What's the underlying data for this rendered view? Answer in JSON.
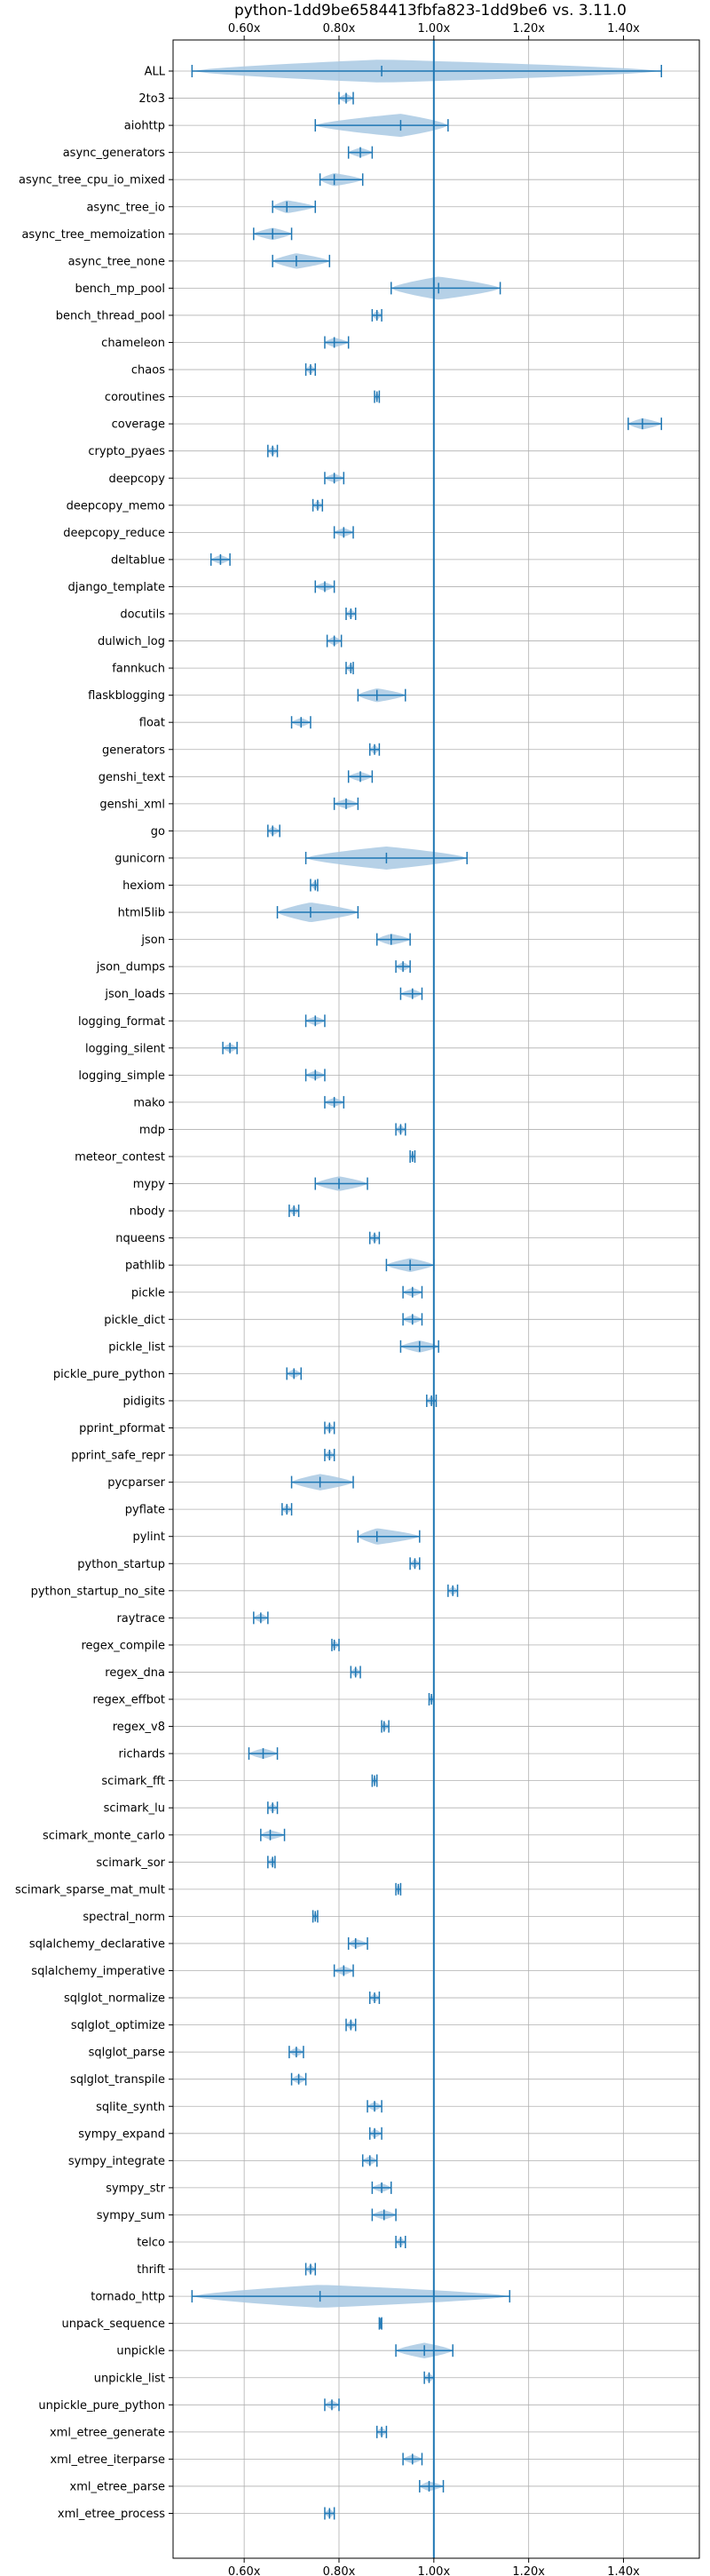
{
  "chart_data": {
    "type": "violin",
    "title": "python-1dd9be6584413fbfa823-1dd9be6 vs. 3.11.0",
    "xlabel": "",
    "ylabel": "",
    "x_ticks": [
      "0.60x",
      "0.80x",
      "1.00x",
      "1.20x",
      "1.40x"
    ],
    "x_tick_values": [
      0.6,
      0.8,
      1.0,
      1.2,
      1.4
    ],
    "xlim": [
      0.45,
      1.56
    ],
    "reference_line": 1.0,
    "grid": true,
    "colors": {
      "series": "#1f77b4",
      "fill": "#a9c9e3",
      "grid": "#b0b0b0"
    },
    "benchmarks": [
      {
        "name": "ALL",
        "min": 0.49,
        "mean": 0.89,
        "max": 1.48
      },
      {
        "name": "2to3",
        "min": 0.8,
        "mean": 0.815,
        "max": 0.83
      },
      {
        "name": "aiohttp",
        "min": 0.75,
        "mean": 0.93,
        "max": 1.03
      },
      {
        "name": "async_generators",
        "min": 0.82,
        "mean": 0.845,
        "max": 0.87
      },
      {
        "name": "async_tree_cpu_io_mixed",
        "min": 0.76,
        "mean": 0.79,
        "max": 0.85
      },
      {
        "name": "async_tree_io",
        "min": 0.66,
        "mean": 0.69,
        "max": 0.75
      },
      {
        "name": "async_tree_memoization",
        "min": 0.62,
        "mean": 0.66,
        "max": 0.7
      },
      {
        "name": "async_tree_none",
        "min": 0.66,
        "mean": 0.71,
        "max": 0.78
      },
      {
        "name": "bench_mp_pool",
        "min": 0.91,
        "mean": 1.01,
        "max": 1.14
      },
      {
        "name": "bench_thread_pool",
        "min": 0.87,
        "mean": 0.88,
        "max": 0.89
      },
      {
        "name": "chameleon",
        "min": 0.77,
        "mean": 0.79,
        "max": 0.82
      },
      {
        "name": "chaos",
        "min": 0.73,
        "mean": 0.74,
        "max": 0.75
      },
      {
        "name": "coroutines",
        "min": 0.875,
        "mean": 0.88,
        "max": 0.885
      },
      {
        "name": "coverage",
        "min": 1.41,
        "mean": 1.44,
        "max": 1.48
      },
      {
        "name": "crypto_pyaes",
        "min": 0.65,
        "mean": 0.66,
        "max": 0.67
      },
      {
        "name": "deepcopy",
        "min": 0.77,
        "mean": 0.79,
        "max": 0.81
      },
      {
        "name": "deepcopy_memo",
        "min": 0.745,
        "mean": 0.755,
        "max": 0.765
      },
      {
        "name": "deepcopy_reduce",
        "min": 0.79,
        "mean": 0.81,
        "max": 0.83
      },
      {
        "name": "deltablue",
        "min": 0.53,
        "mean": 0.55,
        "max": 0.57
      },
      {
        "name": "django_template",
        "min": 0.75,
        "mean": 0.77,
        "max": 0.79
      },
      {
        "name": "docutils",
        "min": 0.815,
        "mean": 0.825,
        "max": 0.835
      },
      {
        "name": "dulwich_log",
        "min": 0.775,
        "mean": 0.79,
        "max": 0.805
      },
      {
        "name": "fannkuch",
        "min": 0.815,
        "mean": 0.825,
        "max": 0.83
      },
      {
        "name": "flaskblogging",
        "min": 0.84,
        "mean": 0.88,
        "max": 0.94
      },
      {
        "name": "float",
        "min": 0.7,
        "mean": 0.72,
        "max": 0.74
      },
      {
        "name": "generators",
        "min": 0.865,
        "mean": 0.875,
        "max": 0.885
      },
      {
        "name": "genshi_text",
        "min": 0.82,
        "mean": 0.845,
        "max": 0.87
      },
      {
        "name": "genshi_xml",
        "min": 0.79,
        "mean": 0.815,
        "max": 0.84
      },
      {
        "name": "go",
        "min": 0.65,
        "mean": 0.66,
        "max": 0.675
      },
      {
        "name": "gunicorn",
        "min": 0.73,
        "mean": 0.9,
        "max": 1.07
      },
      {
        "name": "hexiom",
        "min": 0.74,
        "mean": 0.75,
        "max": 0.755
      },
      {
        "name": "html5lib",
        "min": 0.67,
        "mean": 0.74,
        "max": 0.84
      },
      {
        "name": "json",
        "min": 0.88,
        "mean": 0.91,
        "max": 0.95
      },
      {
        "name": "json_dumps",
        "min": 0.92,
        "mean": 0.935,
        "max": 0.95
      },
      {
        "name": "json_loads",
        "min": 0.93,
        "mean": 0.955,
        "max": 0.975
      },
      {
        "name": "logging_format",
        "min": 0.73,
        "mean": 0.75,
        "max": 0.77
      },
      {
        "name": "logging_silent",
        "min": 0.555,
        "mean": 0.57,
        "max": 0.585
      },
      {
        "name": "logging_simple",
        "min": 0.73,
        "mean": 0.75,
        "max": 0.77
      },
      {
        "name": "mako",
        "min": 0.77,
        "mean": 0.79,
        "max": 0.81
      },
      {
        "name": "mdp",
        "min": 0.92,
        "mean": 0.93,
        "max": 0.94
      },
      {
        "name": "meteor_contest",
        "min": 0.95,
        "mean": 0.955,
        "max": 0.96
      },
      {
        "name": "mypy",
        "min": 0.75,
        "mean": 0.8,
        "max": 0.86
      },
      {
        "name": "nbody",
        "min": 0.695,
        "mean": 0.705,
        "max": 0.715
      },
      {
        "name": "nqueens",
        "min": 0.865,
        "mean": 0.875,
        "max": 0.885
      },
      {
        "name": "pathlib",
        "min": 0.9,
        "mean": 0.95,
        "max": 1.0
      },
      {
        "name": "pickle",
        "min": 0.935,
        "mean": 0.955,
        "max": 0.975
      },
      {
        "name": "pickle_dict",
        "min": 0.935,
        "mean": 0.955,
        "max": 0.975
      },
      {
        "name": "pickle_list",
        "min": 0.93,
        "mean": 0.97,
        "max": 1.01
      },
      {
        "name": "pickle_pure_python",
        "min": 0.69,
        "mean": 0.705,
        "max": 0.72
      },
      {
        "name": "pidigits",
        "min": 0.985,
        "mean": 0.995,
        "max": 1.005
      },
      {
        "name": "pprint_pformat",
        "min": 0.77,
        "mean": 0.78,
        "max": 0.79
      },
      {
        "name": "pprint_safe_repr",
        "min": 0.77,
        "mean": 0.78,
        "max": 0.79
      },
      {
        "name": "pycparser",
        "min": 0.7,
        "mean": 0.76,
        "max": 0.83
      },
      {
        "name": "pyflate",
        "min": 0.68,
        "mean": 0.69,
        "max": 0.7
      },
      {
        "name": "pylint",
        "min": 0.84,
        "mean": 0.88,
        "max": 0.97
      },
      {
        "name": "python_startup",
        "min": 0.95,
        "mean": 0.96,
        "max": 0.97
      },
      {
        "name": "python_startup_no_site",
        "min": 1.03,
        "mean": 1.04,
        "max": 1.05
      },
      {
        "name": "raytrace",
        "min": 0.62,
        "mean": 0.635,
        "max": 0.65
      },
      {
        "name": "regex_compile",
        "min": 0.785,
        "mean": 0.79,
        "max": 0.8
      },
      {
        "name": "regex_dna",
        "min": 0.825,
        "mean": 0.835,
        "max": 0.845
      },
      {
        "name": "regex_effbot",
        "min": 0.99,
        "mean": 0.995,
        "max": 1.0
      },
      {
        "name": "regex_v8",
        "min": 0.89,
        "mean": 0.895,
        "max": 0.905
      },
      {
        "name": "richards",
        "min": 0.61,
        "mean": 0.64,
        "max": 0.67
      },
      {
        "name": "scimark_fft",
        "min": 0.87,
        "mean": 0.875,
        "max": 0.88
      },
      {
        "name": "scimark_lu",
        "min": 0.65,
        "mean": 0.66,
        "max": 0.67
      },
      {
        "name": "scimark_monte_carlo",
        "min": 0.635,
        "mean": 0.655,
        "max": 0.685
      },
      {
        "name": "scimark_sor",
        "min": 0.65,
        "mean": 0.66,
        "max": 0.665
      },
      {
        "name": "scimark_sparse_mat_mult",
        "min": 0.92,
        "mean": 0.925,
        "max": 0.93
      },
      {
        "name": "spectral_norm",
        "min": 0.745,
        "mean": 0.75,
        "max": 0.755
      },
      {
        "name": "sqlalchemy_declarative",
        "min": 0.82,
        "mean": 0.835,
        "max": 0.86
      },
      {
        "name": "sqlalchemy_imperative",
        "min": 0.79,
        "mean": 0.81,
        "max": 0.83
      },
      {
        "name": "sqlglot_normalize",
        "min": 0.865,
        "mean": 0.875,
        "max": 0.885
      },
      {
        "name": "sqlglot_optimize",
        "min": 0.815,
        "mean": 0.825,
        "max": 0.835
      },
      {
        "name": "sqlglot_parse",
        "min": 0.695,
        "mean": 0.71,
        "max": 0.725
      },
      {
        "name": "sqlglot_transpile",
        "min": 0.7,
        "mean": 0.715,
        "max": 0.73
      },
      {
        "name": "sqlite_synth",
        "min": 0.86,
        "mean": 0.875,
        "max": 0.89
      },
      {
        "name": "sympy_expand",
        "min": 0.865,
        "mean": 0.875,
        "max": 0.89
      },
      {
        "name": "sympy_integrate",
        "min": 0.85,
        "mean": 0.865,
        "max": 0.88
      },
      {
        "name": "sympy_str",
        "min": 0.87,
        "mean": 0.89,
        "max": 0.91
      },
      {
        "name": "sympy_sum",
        "min": 0.87,
        "mean": 0.895,
        "max": 0.92
      },
      {
        "name": "telco",
        "min": 0.92,
        "mean": 0.93,
        "max": 0.94
      },
      {
        "name": "thrift",
        "min": 0.73,
        "mean": 0.74,
        "max": 0.75
      },
      {
        "name": "tornado_http",
        "min": 0.49,
        "mean": 0.76,
        "max": 1.16
      },
      {
        "name": "unpack_sequence",
        "min": 0.885,
        "mean": 0.888,
        "max": 0.89
      },
      {
        "name": "unpickle",
        "min": 0.92,
        "mean": 0.98,
        "max": 1.04
      },
      {
        "name": "unpickle_list",
        "min": 0.98,
        "mean": 0.99,
        "max": 1.0
      },
      {
        "name": "unpickle_pure_python",
        "min": 0.77,
        "mean": 0.785,
        "max": 0.8
      },
      {
        "name": "xml_etree_generate",
        "min": 0.88,
        "mean": 0.89,
        "max": 0.9
      },
      {
        "name": "xml_etree_iterparse",
        "min": 0.935,
        "mean": 0.955,
        "max": 0.975
      },
      {
        "name": "xml_etree_parse",
        "min": 0.97,
        "mean": 0.99,
        "max": 1.02
      },
      {
        "name": "xml_etree_process",
        "min": 0.77,
        "mean": 0.78,
        "max": 0.79
      }
    ]
  }
}
